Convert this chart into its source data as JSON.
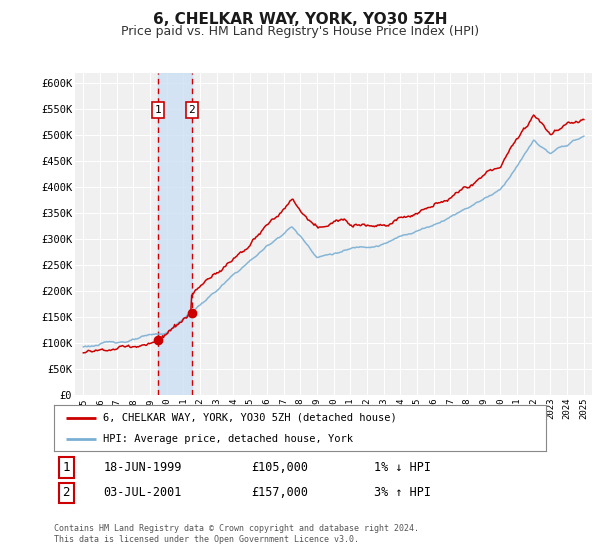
{
  "title": "6, CHELKAR WAY, YORK, YO30 5ZH",
  "subtitle": "Price paid vs. HM Land Registry's House Price Index (HPI)",
  "title_fontsize": 11,
  "subtitle_fontsize": 9,
  "background_color": "#ffffff",
  "plot_bg_color": "#f0f0f0",
  "grid_color": "#ffffff",
  "ylim": [
    0,
    620000
  ],
  "yticks": [
    0,
    50000,
    100000,
    150000,
    200000,
    250000,
    300000,
    350000,
    400000,
    450000,
    500000,
    550000,
    600000
  ],
  "xlim_start": 1994.5,
  "xlim_end": 2025.5,
  "vline1_x": 1999.46,
  "vline2_x": 2001.5,
  "shade_color": "#cce0f5",
  "vline_color": "#cc0000",
  "red_line_color": "#cc0000",
  "blue_line_color": "#7aafd4",
  "marker_color": "#cc0000",
  "legend_label_red": "6, CHELKAR WAY, YORK, YO30 5ZH (detached house)",
  "legend_label_blue": "HPI: Average price, detached house, York",
  "footnote": "Contains HM Land Registry data © Crown copyright and database right 2024.\nThis data is licensed under the Open Government Licence v3.0.",
  "label1": "1",
  "label2": "2",
  "trans1_date": "18-JUN-1999",
  "trans1_price": "£105,000",
  "trans1_hpi": "1% ↓ HPI",
  "trans2_date": "03-JUL-2001",
  "trans2_price": "£157,000",
  "trans2_hpi": "3% ↑ HPI"
}
